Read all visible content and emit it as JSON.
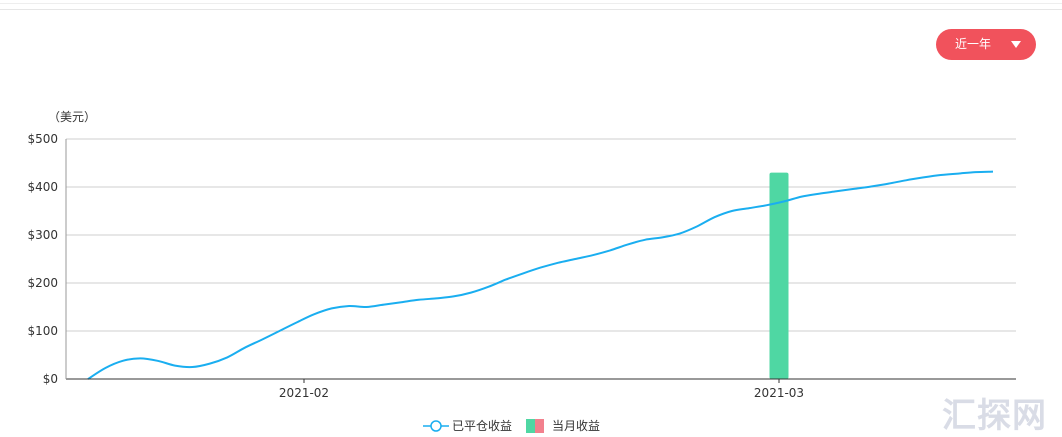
{
  "period_selector": {
    "label": "近一年"
  },
  "watermark": "汇探网",
  "chart_data": {
    "type": "line",
    "yunit": "（美元）",
    "ylim": [
      0,
      500
    ],
    "yticks": [
      "$0",
      "$100",
      "$200",
      "$300",
      "$400",
      "$500"
    ],
    "ytick_values": [
      0,
      100,
      200,
      300,
      400,
      500
    ],
    "xticks": [
      "2021-02",
      "2021-03"
    ],
    "grid": true,
    "legend_position": "bottom-center",
    "series": [
      {
        "name": "已平仓收益",
        "type": "line",
        "color": "#1aaef0",
        "values": [
          0,
          23,
          38,
          43,
          38,
          28,
          25,
          32,
          45,
          65,
          82,
          100,
          118,
          135,
          147,
          152,
          150,
          155,
          160,
          165,
          168,
          172,
          180,
          192,
          207,
          220,
          232,
          242,
          250,
          258,
          268,
          280,
          290,
          295,
          303,
          318,
          337,
          350,
          356,
          362,
          370,
          380,
          386,
          391,
          396,
          401,
          407,
          414,
          420,
          425,
          428,
          431,
          432
        ]
      },
      {
        "name": "当月收益",
        "type": "bar",
        "color": "#4fd7a3",
        "alt_color": "#f2808d",
        "bars": [
          {
            "x": "2021-03",
            "value": 430
          }
        ]
      }
    ]
  }
}
